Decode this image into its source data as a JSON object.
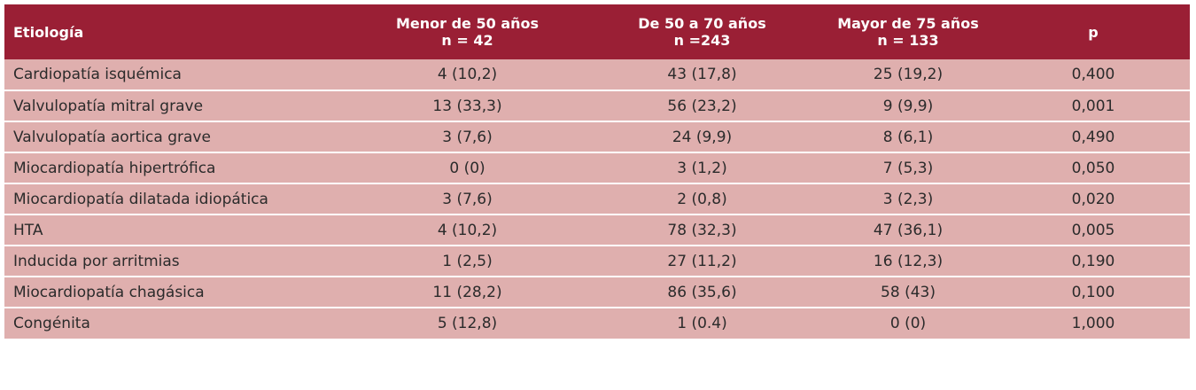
{
  "table": {
    "headers": [
      {
        "line1": "Etiología",
        "line2": ""
      },
      {
        "line1": "Menor de 50 años",
        "line2": "n = 42"
      },
      {
        "line1": "De 50 a 70 años",
        "line2": "n =243"
      },
      {
        "line1": "Mayor de 75 años",
        "line2": "n = 133"
      },
      {
        "line1": "p",
        "line2": ""
      }
    ],
    "rows": [
      [
        "Cardiopatía isquémica",
        "4 (10,2)",
        "43 (17,8)",
        "25 (19,2)",
        "0,400"
      ],
      [
        "Valvulopatía mitral grave",
        "13 (33,3)",
        "56 (23,2)",
        "9 (9,9)",
        "0,001"
      ],
      [
        "Valvulopatía aortica grave",
        "3 (7,6)",
        "24 (9,9)",
        "8 (6,1)",
        "0,490"
      ],
      [
        "Miocardiopatía hipertrófica",
        "0 (0)",
        "3 (1,2)",
        "7 (5,3)",
        "0,050"
      ],
      [
        "Miocardiopatía dilatada idiopática",
        "3 (7,6)",
        "2 (0,8)",
        "3 (2,3)",
        "0,020"
      ],
      [
        "HTA",
        "4 (10,2)",
        "78 (32,3)",
        "47 (36,1)",
        "0,005"
      ],
      [
        "Inducida por arritmias",
        "1 (2,5)",
        "27 (11,2)",
        "16 (12,3)",
        "0,190"
      ],
      [
        "Miocardiopatía chagásica",
        "11 (28,2)",
        "86 (35,6)",
        "58 (43)",
        "0,100"
      ],
      [
        "Congénita",
        "5 (12,8)",
        "1 (0.4)",
        "0 (0)",
        "1,000"
      ]
    ]
  },
  "colors": {
    "header_bg": "#9a1f35",
    "row_bg": "#dfafae",
    "header_text": "#ffffff",
    "body_text": "#2b2b2b"
  }
}
